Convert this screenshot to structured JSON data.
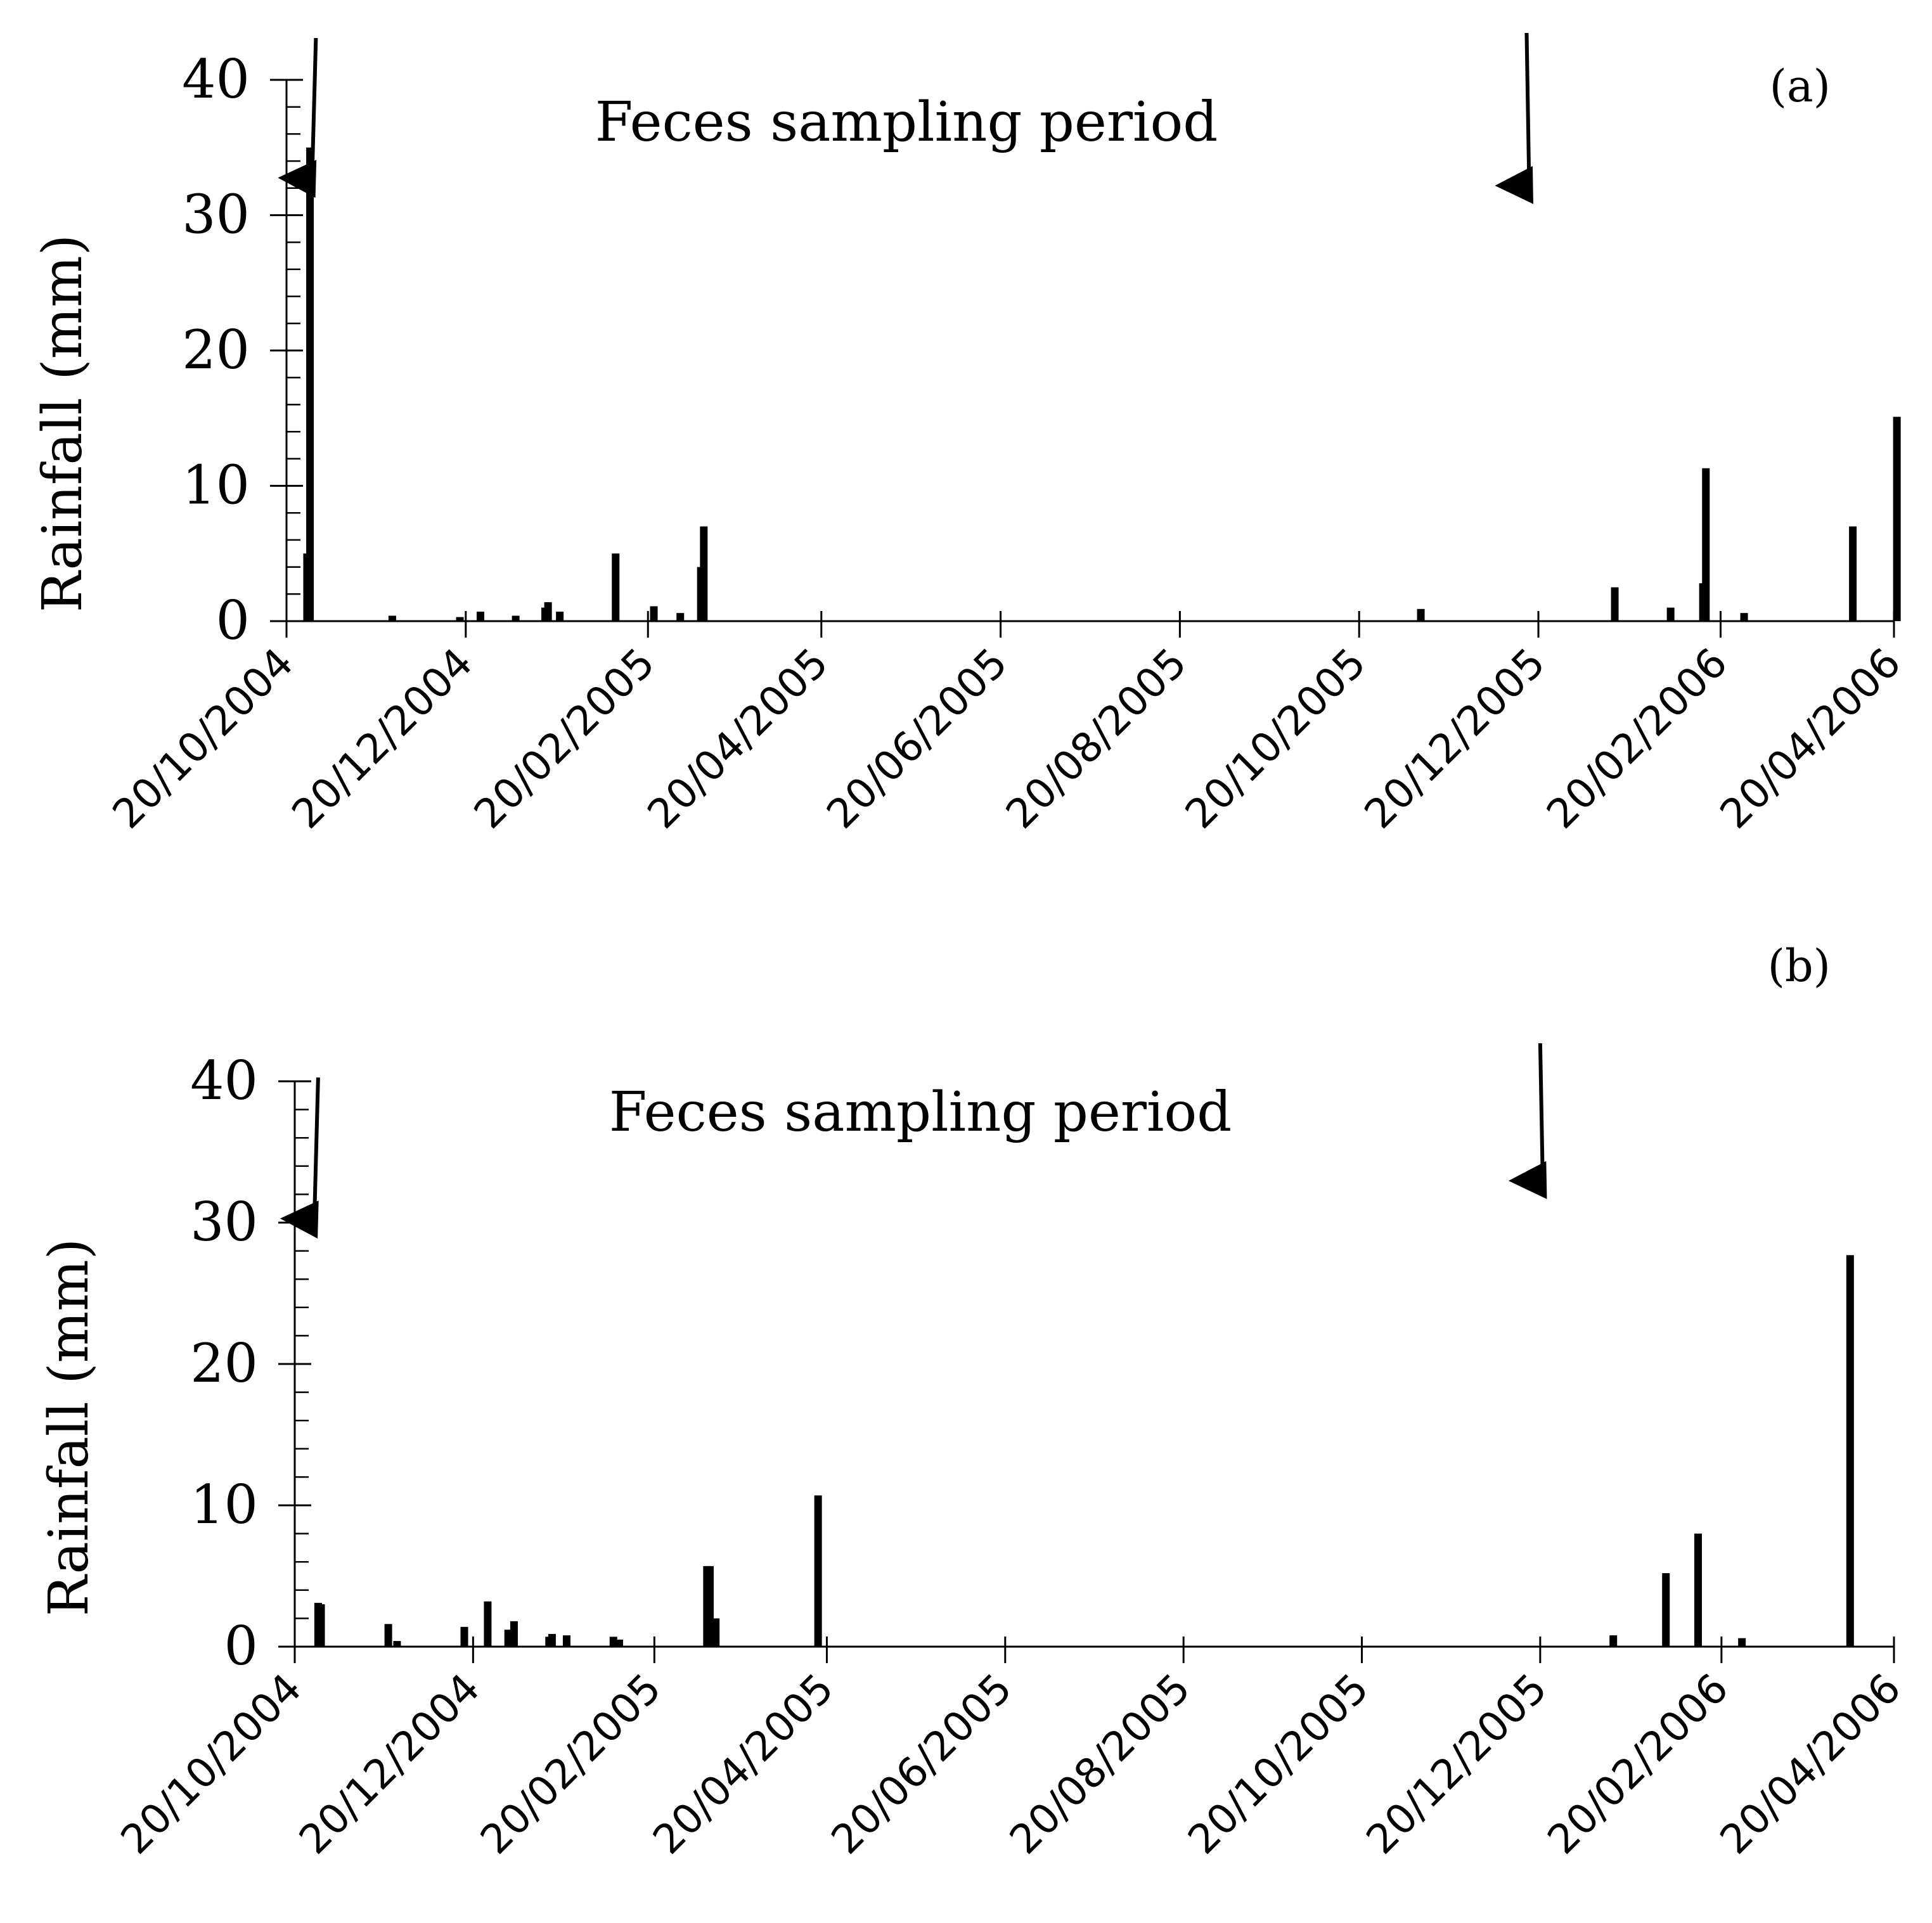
{
  "chart_data": [
    {
      "type": "bar",
      "panel_label": "(a)",
      "ylabel": "Rainfall (mm)",
      "xlabel": "",
      "ylim": [
        0,
        40
      ],
      "yticks": [
        "0",
        "10",
        "20",
        "30",
        "40"
      ],
      "xticks": [
        "20/10/2004",
        "20/12/2004",
        "20/02/2005",
        "20/04/2005",
        "20/06/2005",
        "20/08/2005",
        "20/10/2005",
        "20/12/2005",
        "20/02/2006",
        "20/04/2006"
      ],
      "annotation": "Feces sampling period",
      "sampling_period": {
        "start": "2004-10-30",
        "end": "2005-12-16"
      },
      "series": [
        {
          "name": "Rainfall (mm)",
          "points": [
            {
              "date": "2004-10-27",
              "value": 5.0
            },
            {
              "date": "2004-10-28",
              "value": 35.0
            },
            {
              "date": "2004-11-25",
              "value": 0.4
            },
            {
              "date": "2004-12-18",
              "value": 0.3
            },
            {
              "date": "2004-12-25",
              "value": 0.7
            },
            {
              "date": "2005-01-06",
              "value": 0.4
            },
            {
              "date": "2005-01-16",
              "value": 1.0
            },
            {
              "date": "2005-01-17",
              "value": 1.4
            },
            {
              "date": "2005-01-21",
              "value": 0.7
            },
            {
              "date": "2005-02-09",
              "value": 5.0
            },
            {
              "date": "2005-02-22",
              "value": 1.1
            },
            {
              "date": "2005-03-03",
              "value": 0.6
            },
            {
              "date": "2005-03-10",
              "value": 4.0
            },
            {
              "date": "2005-03-11",
              "value": 7.0
            },
            {
              "date": "2005-11-10",
              "value": 0.9
            },
            {
              "date": "2006-01-15",
              "value": 2.5
            },
            {
              "date": "2006-02-03",
              "value": 1.0
            },
            {
              "date": "2006-02-14",
              "value": 2.8
            },
            {
              "date": "2006-02-15",
              "value": 11.3
            },
            {
              "date": "2006-02-28",
              "value": 0.6
            },
            {
              "date": "2006-04-06",
              "value": 7.0
            },
            {
              "date": "2006-04-21",
              "value": 15.1
            }
          ]
        }
      ]
    },
    {
      "type": "bar",
      "panel_label": "(b)",
      "ylabel": "Rainfall (mm)",
      "xlabel": "",
      "ylim": [
        0,
        40
      ],
      "yticks": [
        "0",
        "10",
        "20",
        "30",
        "40"
      ],
      "xticks": [
        "20/10/2004",
        "20/12/2004",
        "20/02/2005",
        "20/04/2005",
        "20/06/2005",
        "20/08/2005",
        "20/10/2005",
        "20/12/2005",
        "20/02/2006",
        "20/04/2006"
      ],
      "annotation": "Feces sampling period",
      "sampling_period": {
        "start": "2004-10-28",
        "end": "2005-12-20"
      },
      "series": [
        {
          "name": "Rainfall (mm)",
          "points": [
            {
              "date": "2004-10-28",
              "value": 3.1
            },
            {
              "date": "2004-10-29",
              "value": 3.0
            },
            {
              "date": "2004-11-21",
              "value": 1.6
            },
            {
              "date": "2004-11-24",
              "value": 0.4
            },
            {
              "date": "2004-12-17",
              "value": 1.4
            },
            {
              "date": "2004-12-25",
              "value": 3.2
            },
            {
              "date": "2005-01-01",
              "value": 1.2
            },
            {
              "date": "2005-01-03",
              "value": 1.8
            },
            {
              "date": "2005-01-15",
              "value": 0.7
            },
            {
              "date": "2005-01-16",
              "value": 0.9
            },
            {
              "date": "2005-01-21",
              "value": 0.8
            },
            {
              "date": "2005-02-06",
              "value": 0.7
            },
            {
              "date": "2005-02-08",
              "value": 0.5
            },
            {
              "date": "2005-03-10",
              "value": 5.7
            },
            {
              "date": "2005-03-11",
              "value": 5.7
            },
            {
              "date": "2005-03-13",
              "value": 2.0
            },
            {
              "date": "2005-04-17",
              "value": 10.7
            },
            {
              "date": "2006-01-14",
              "value": 0.8
            },
            {
              "date": "2006-02-01",
              "value": 5.2
            },
            {
              "date": "2006-02-12",
              "value": 8.0
            },
            {
              "date": "2006-02-27",
              "value": 0.6
            },
            {
              "date": "2006-04-05",
              "value": 27.7
            }
          ]
        }
      ]
    }
  ]
}
